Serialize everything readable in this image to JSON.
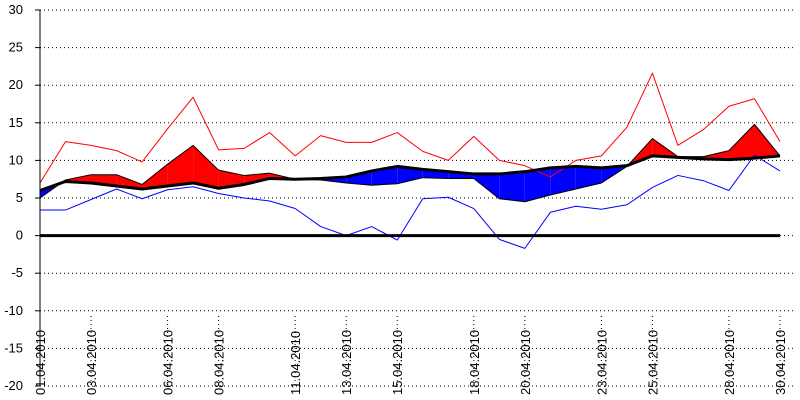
{
  "chart_data": {
    "type": "area",
    "title": "",
    "xlabel": "",
    "ylabel": "",
    "ylim": [
      -20,
      30
    ],
    "yticks": [
      -20,
      -15,
      -10,
      -5,
      0,
      5,
      10,
      15,
      20,
      25,
      30
    ],
    "grid": "y-dotted",
    "x": [
      "01.04.2010",
      "02.04.2010",
      "03.04.2010",
      "04.04.2010",
      "05.04.2010",
      "06.04.2010",
      "07.04.2010",
      "08.04.2010",
      "09.04.2010",
      "10.04.2010",
      "11.04.2010",
      "12.04.2010",
      "13.04.2010",
      "14.04.2010",
      "15.04.2010",
      "16.04.2010",
      "17.04.2010",
      "18.04.2010",
      "19.04.2010",
      "20.04.2010",
      "21.04.2010",
      "22.04.2010",
      "23.04.2010",
      "24.04.2010",
      "25.04.2010",
      "26.04.2010",
      "27.04.2010",
      "28.04.2010",
      "29.04.2010",
      "30.04.2010"
    ],
    "x_tick_labels": [
      "01.04.2010",
      "03.04.2010",
      "06.04.2010",
      "08.04.2010",
      "11.04.2010",
      "13.04.2010",
      "15.04.2010",
      "18.04.2010",
      "20.04.2010",
      "23.04.2010",
      "25.04.2010",
      "28.04.2010",
      "30.04.2010"
    ],
    "series": [
      {
        "role": "max",
        "color": "#ff0000",
        "values": [
          7.0,
          12.5,
          12.0,
          11.3,
          9.8,
          14.2,
          18.4,
          11.4,
          11.6,
          13.7,
          10.6,
          13.3,
          12.4,
          12.4,
          13.7,
          11.2,
          10.0,
          13.2,
          10.0,
          9.3,
          7.8,
          10.0,
          10.6,
          14.4,
          21.6,
          12.0,
          14.1,
          17.2,
          18.2,
          12.5
        ]
      },
      {
        "role": "mean",
        "color": "#ff0000",
        "values": [
          5.0,
          7.4,
          8.1,
          8.1,
          6.8,
          9.5,
          12.0,
          8.7,
          8.0,
          8.3,
          7.5,
          7.4,
          7.0,
          6.7,
          6.9,
          7.7,
          7.6,
          7.6,
          4.9,
          4.5,
          5.4,
          6.2,
          7.0,
          9.2,
          12.9,
          10.5,
          10.5,
          11.3,
          14.8,
          10.6
        ]
      },
      {
        "role": "reference",
        "color": "#000000",
        "values": [
          6.0,
          7.2,
          7.0,
          6.6,
          6.2,
          6.6,
          7.0,
          6.3,
          6.8,
          7.6,
          7.5,
          7.6,
          7.8,
          8.6,
          9.2,
          8.8,
          8.5,
          8.2,
          8.2,
          8.5,
          9.0,
          9.2,
          9.0,
          9.3,
          10.6,
          10.4,
          10.2,
          10.1,
          10.3,
          10.6
        ]
      },
      {
        "role": "min",
        "color": "#0000ff",
        "values": [
          3.4,
          3.4,
          4.8,
          6.2,
          4.9,
          6.1,
          6.5,
          5.6,
          5.0,
          4.6,
          3.6,
          1.2,
          0.0,
          1.2,
          -0.6,
          4.9,
          5.1,
          3.6,
          -0.5,
          -1.7,
          3.1,
          3.9,
          3.5,
          4.1,
          6.4,
          8.0,
          7.3,
          6.0,
          10.7,
          8.6
        ]
      }
    ],
    "fill_above_color": "#ff0000",
    "fill_below_color": "#0000ff",
    "zero_line": 0
  }
}
